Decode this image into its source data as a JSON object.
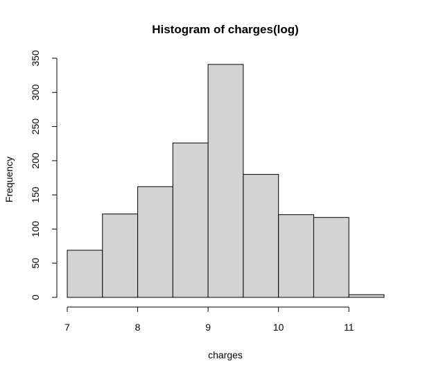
{
  "chart_data": {
    "type": "bar",
    "title": "Histogram of charges(log)",
    "xlabel": "charges",
    "ylabel": "Frequency",
    "bins": [
      {
        "start": 7.0,
        "end": 7.5,
        "count": 69
      },
      {
        "start": 7.5,
        "end": 8.0,
        "count": 122
      },
      {
        "start": 8.0,
        "end": 8.5,
        "count": 162
      },
      {
        "start": 8.5,
        "end": 9.0,
        "count": 226
      },
      {
        "start": 9.0,
        "end": 9.5,
        "count": 341
      },
      {
        "start": 9.5,
        "end": 10.0,
        "count": 180
      },
      {
        "start": 10.0,
        "end": 10.5,
        "count": 121
      },
      {
        "start": 10.5,
        "end": 11.0,
        "count": 117
      },
      {
        "start": 11.0,
        "end": 11.5,
        "count": 4
      }
    ],
    "xlim": [
      7,
      11.5
    ],
    "ylim": [
      0,
      350
    ],
    "x_ticks": [
      "7",
      "8",
      "9",
      "10",
      "11"
    ],
    "y_ticks": [
      "0",
      "50",
      "100",
      "150",
      "200",
      "250",
      "300",
      "350"
    ],
    "grid": false,
    "colors": {
      "bar_fill": "#d3d3d3",
      "bar_stroke": "#000000"
    }
  }
}
